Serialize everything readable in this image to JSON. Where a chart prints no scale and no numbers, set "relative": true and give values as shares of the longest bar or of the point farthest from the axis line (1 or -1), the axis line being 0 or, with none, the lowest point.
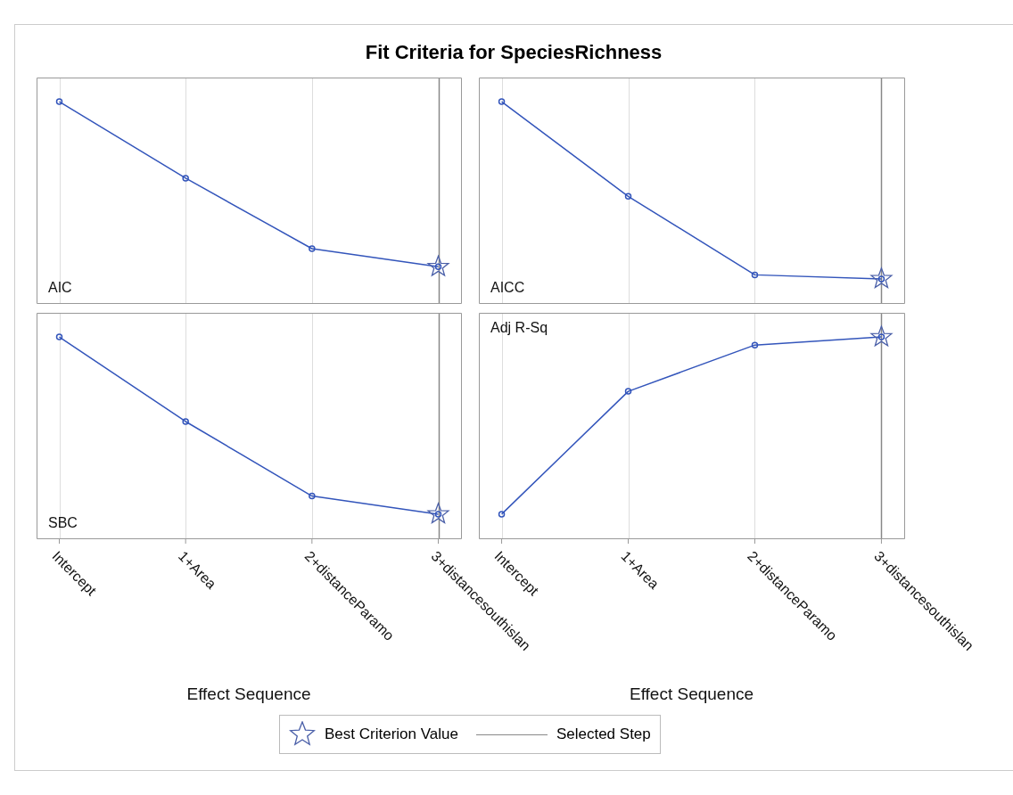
{
  "chart_data": [
    {
      "type": "line",
      "title": "Fit Criteria for SpeciesRichness",
      "relative": true,
      "categories": [
        "Intercept",
        "1+Area",
        "2+distanceParamo",
        "3+distancesouthislan"
      ],
      "tick_labels": false,
      "grid": "x",
      "legend": "bottom",
      "annotations": [
        "AIC"
      ],
      "series": [
        {
          "color": "#3355bb",
          "marker": "circle",
          "values": [
            1,
            0.62,
            0.27,
            0.18
          ]
        },
        {
          "type": "scatter",
          "name": "Best Criterion Value",
          "color": "#4a5fa8",
          "marker": "star",
          "x": [
            "3+distancesouthislan"
          ],
          "values": [
            0.18
          ]
        }
      ],
      "ref_lines": [
        {
          "axis": "x",
          "value": "3+distancesouthislan",
          "label": "Selected Step",
          "color": "#888888"
        }
      ]
    },
    {
      "type": "line",
      "relative": true,
      "categories": [
        "Intercept",
        "1+Area",
        "2+distanceParamo",
        "3+distancesouthislan"
      ],
      "tick_labels": false,
      "grid": "x",
      "annotations": [
        "AICC"
      ],
      "series": [
        {
          "color": "#3355bb",
          "marker": "circle",
          "values": [
            1,
            0.53,
            0.14,
            0.12
          ]
        },
        {
          "type": "scatter",
          "color": "#4a5fa8",
          "marker": "star",
          "x": [
            "3+distancesouthislan"
          ],
          "values": [
            0.12
          ]
        }
      ],
      "ref_lines": [
        {
          "axis": "x",
          "value": "3+distancesouthislan",
          "color": "#888888"
        }
      ]
    },
    {
      "type": "line",
      "relative": true,
      "categories": [
        "Intercept",
        "1+Area",
        "2+distanceParamo",
        "3+distancesouthislan"
      ],
      "tick_labels": "x",
      "grid": "x",
      "xlabel": "Effect Sequence",
      "annotations": [
        "SBC"
      ],
      "series": [
        {
          "color": "#3355bb",
          "marker": "circle",
          "values": [
            1,
            0.58,
            0.21,
            0.12
          ]
        },
        {
          "type": "scatter",
          "color": "#4a5fa8",
          "marker": "star",
          "x": [
            "3+distancesouthislan"
          ],
          "values": [
            0.12
          ]
        }
      ],
      "ref_lines": [
        {
          "axis": "x",
          "value": "3+distancesouthislan",
          "color": "#888888"
        }
      ]
    },
    {
      "type": "line",
      "relative": true,
      "categories": [
        "Intercept",
        "1+Area",
        "2+distanceParamo",
        "3+distancesouthislan"
      ],
      "tick_labels": "x",
      "grid": "x",
      "xlabel": "Effect Sequence",
      "annotations": [
        "Adj R-Sq"
      ],
      "series": [
        {
          "color": "#3355bb",
          "marker": "circle",
          "values": [
            0.12,
            0.73,
            0.96,
            1
          ]
        },
        {
          "type": "scatter",
          "color": "#4a5fa8",
          "marker": "star",
          "x": [
            "3+distancesouthislan"
          ],
          "values": [
            1
          ]
        }
      ],
      "ref_lines": [
        {
          "axis": "x",
          "value": "3+distancesouthislan",
          "color": "#888888"
        }
      ]
    }
  ]
}
